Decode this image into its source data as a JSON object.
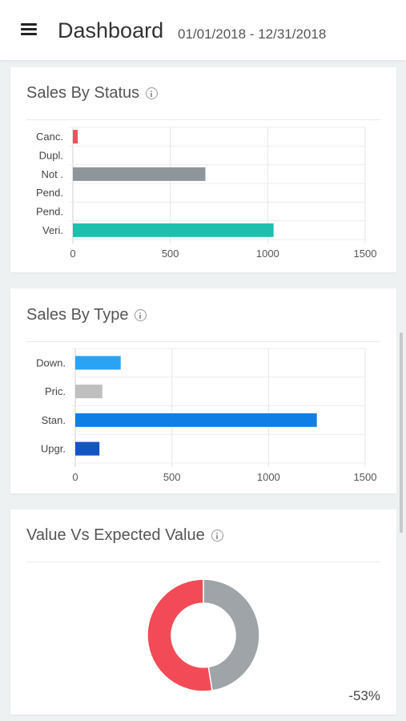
{
  "header": {
    "title": "Dashboard",
    "date_range": "01/01/2018 - 12/31/2018"
  },
  "cards": {
    "status": {
      "title": "Sales By Status"
    },
    "type": {
      "title": "Sales By Type"
    },
    "value": {
      "title": "Value Vs Expected Value",
      "change": "-53%"
    }
  },
  "chart_data": [
    {
      "type": "bar",
      "orientation": "horizontal",
      "title": "Sales By Status",
      "categories": [
        "Canc.",
        "Dupl.",
        "Not .",
        "Pend.",
        "Pend.",
        "Veri."
      ],
      "values": [
        25,
        0,
        680,
        0,
        0,
        1030
      ],
      "colors": [
        "#f1505c",
        "#9aa0a6",
        "#8e959b",
        "#9aa0a6",
        "#9aa0a6",
        "#1fbfad"
      ],
      "xlim": [
        0,
        1500
      ],
      "xticks": [
        0,
        500,
        1000,
        1500
      ],
      "grid": true
    },
    {
      "type": "bar",
      "orientation": "horizontal",
      "title": "Sales By Type",
      "categories": [
        "Down.",
        "Pric.",
        "Stan.",
        "Upgr."
      ],
      "values": [
        235,
        140,
        1250,
        125
      ],
      "colors": [
        "#2ba3f5",
        "#bfbfbf",
        "#0f7fe6",
        "#1256c2"
      ],
      "xlim": [
        0,
        1500
      ],
      "xticks": [
        0,
        500,
        1000,
        1500
      ],
      "grid": true
    },
    {
      "type": "pie",
      "donut": true,
      "title": "Value Vs Expected Value",
      "slices": [
        {
          "value": 47.5,
          "color": "#9ea4a8"
        },
        {
          "value": 52.5,
          "color": "#f24b57"
        }
      ],
      "annotation": "-53%"
    }
  ]
}
